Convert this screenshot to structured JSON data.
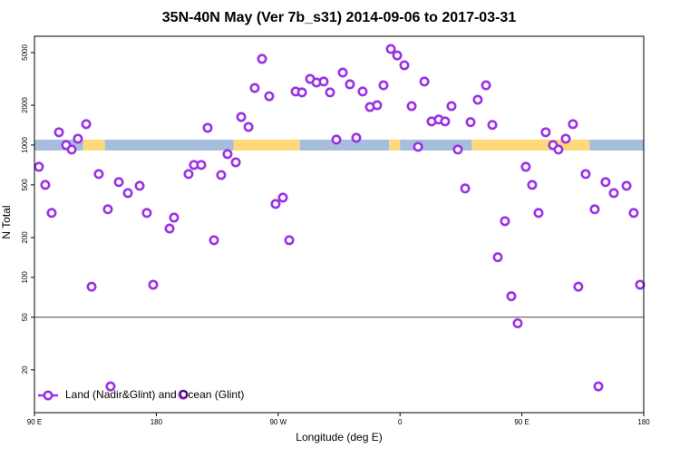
{
  "chart_data": {
    "type": "scatter",
    "title": "35N-40N May (Ver 7b_s31)   2014-09-06 to 2017-03-31",
    "x_label": "Longitude (deg E)",
    "y_label": "N Total",
    "log_y": true,
    "xlim": [
      90,
      540
    ],
    "xticks": [
      {
        "value": 90,
        "label": "90 E"
      },
      {
        "value": 180,
        "label": "180"
      },
      {
        "value": 270,
        "label": "90 W"
      },
      {
        "value": 360,
        "label": "0"
      },
      {
        "value": 450,
        "label": "90 E"
      },
      {
        "value": 540,
        "label": "180"
      }
    ],
    "ylim": [
      9.5,
      6640
    ],
    "yticks": [
      20,
      50,
      100,
      200,
      500,
      1000,
      2000,
      5000
    ],
    "hline": 50,
    "legend_position": "bottomleft",
    "land_ocean_band": {
      "range": [
        910,
        1100
      ],
      "segments": [
        {
          "start": 90,
          "end": 126,
          "color": "#a6bddb"
        },
        {
          "start": 126,
          "end": 142,
          "color": "#fdd97c"
        },
        {
          "start": 142,
          "end": 237,
          "color": "#a6bddb"
        },
        {
          "start": 237,
          "end": 286,
          "color": "#fdd97c"
        },
        {
          "start": 286,
          "end": 352,
          "color": "#a6bddb"
        },
        {
          "start": 352,
          "end": 360,
          "color": "#fdd97c"
        },
        {
          "start": 360,
          "end": 413,
          "color": "#a6bddb"
        },
        {
          "start": 413,
          "end": 500,
          "color": "#fdd97c"
        },
        {
          "start": 500,
          "end": 540,
          "color": "#a6bddb"
        }
      ]
    },
    "series": [
      {
        "name": "Land (Nadir&Glint) and Ocean (Glint)",
        "color": "#9a32e6",
        "x": [
          93.3,
          98,
          102.7,
          108.1,
          113.4,
          117.5,
          122.1,
          128.2,
          132.2,
          137.5,
          144.2,
          146.2,
          152.3,
          159,
          167.7,
          173,
          177.7,
          189.8,
          193.1,
          199.8,
          203.8,
          207.8,
          213.2,
          217.9,
          222.6,
          227.9,
          232.6,
          238.7,
          242.7,
          248.1,
          252.7,
          258.1,
          263.4,
          268.1,
          273.5,
          278.2,
          282.9,
          287.6,
          293.6,
          298.3,
          303.6,
          308.3,
          313,
          317.7,
          323,
          327.7,
          332.4,
          337.8,
          343.1,
          347.8,
          353.2,
          357.9,
          363.2,
          368.6,
          373.3,
          378,
          383.3,
          388.6,
          393.3,
          398,
          402.7,
          408.1,
          412.1,
          417.4,
          423.5,
          428.2,
          432.2,
          437.5,
          442.2,
          446.9,
          452.9,
          457.6,
          462.3,
          467.6,
          473,
          477,
          482.4,
          487.7,
          491.7,
          497.1,
          503.8,
          506.5,
          511.8,
          517.9,
          527.3,
          532.6,
          537.3
        ],
        "values": [
          685,
          500,
          307,
          1250,
          1000,
          925,
          1117,
          1440,
          85,
          604,
          327,
          15,
          525,
          434,
          492,
          307,
          88,
          234,
          283,
          13,
          604,
          708,
          708,
          1350,
          191,
          594,
          855,
          741,
          1630,
          1370,
          2700,
          4480,
          2340,
          359,
          401,
          191,
          2540,
          2500,
          3160,
          2970,
          3020,
          2500,
          1100,
          3530,
          2880,
          1135,
          2540,
          1940,
          2000,
          2830,
          5320,
          4760,
          4010,
          1970,
          970,
          3020,
          1510,
          1560,
          1510,
          1970,
          925,
          470,
          1490,
          2200,
          2830,
          1420,
          142,
          266,
          72,
          45,
          685,
          500,
          307,
          1250,
          1000,
          925,
          1117,
          1440,
          85,
          604,
          327,
          15,
          525,
          434,
          492,
          307,
          88
        ]
      }
    ]
  }
}
